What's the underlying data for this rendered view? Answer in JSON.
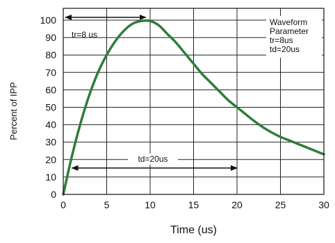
{
  "chart_data": {
    "type": "line",
    "title": "",
    "xlabel": "Time (us)",
    "ylabel": "Percent of IPP",
    "xlim": [
      0,
      30
    ],
    "ylim": [
      0,
      100
    ],
    "x_ticks": [
      0,
      5,
      10,
      15,
      20,
      25,
      30
    ],
    "y_ticks": [
      0,
      10,
      20,
      30,
      40,
      50,
      60,
      70,
      80,
      90,
      100
    ],
    "grid": true,
    "series": [
      {
        "color": "#2e7d3a",
        "x": [
          0,
          1,
          2,
          3,
          4,
          5,
          6,
          7,
          8,
          9,
          10,
          11,
          12,
          13,
          14,
          15,
          16,
          17,
          18,
          19,
          20,
          21,
          22,
          23,
          24,
          25,
          26,
          27,
          28,
          29,
          30
        ],
        "y": [
          0,
          22,
          41,
          57,
          70,
          80,
          88,
          94,
          98,
          99.5,
          99.5,
          97,
          92,
          87,
          81,
          75,
          69,
          64,
          59,
          54,
          50,
          46,
          42,
          38.5,
          35.5,
          33,
          31,
          29,
          27,
          25,
          23
        ]
      }
    ],
    "annotations": [
      {
        "text": "tr=8 us",
        "arrow_from": 0,
        "arrow_to": 9.5
      },
      {
        "text": "td=20us",
        "arrow_from": 1,
        "arrow_to": 20
      },
      {
        "text_lines": [
          "Waveform",
          "Parameter",
          "tr=8us",
          "td=20us"
        ]
      }
    ]
  }
}
